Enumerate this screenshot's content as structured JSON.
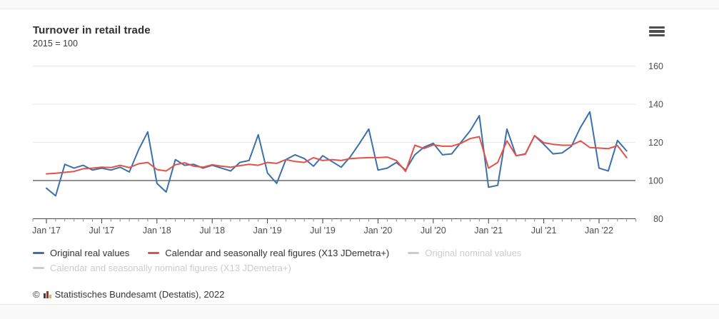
{
  "header": {
    "title": "Turnover in retail trade",
    "subtitle": "2015 = 100"
  },
  "menu": {
    "icon": "hamburger-menu",
    "bars": 3
  },
  "chart_data": {
    "type": "line",
    "title": "Turnover in retail trade",
    "subtitle": "2015 = 100",
    "xlabel": "",
    "ylabel": "",
    "ylim": [
      80,
      163
    ],
    "y_ticks": [
      80,
      100,
      120,
      140,
      160
    ],
    "baseline_value": 100,
    "grid": true,
    "legend_position": "bottom",
    "x_tick_labels": [
      "Jan '17",
      "Jul '17",
      "Jan '18",
      "Jul '18",
      "Jan '19",
      "Jul '19",
      "Jan '20",
      "Jul '20",
      "Jan '21",
      "Jul '21",
      "Jan '22"
    ],
    "x_months": [
      "Jan '17",
      "Feb '17",
      "Mar '17",
      "Apr '17",
      "May '17",
      "Jun '17",
      "Jul '17",
      "Aug '17",
      "Sep '17",
      "Oct '17",
      "Nov '17",
      "Dec '17",
      "Jan '18",
      "Feb '18",
      "Mar '18",
      "Apr '18",
      "May '18",
      "Jun '18",
      "Jul '18",
      "Aug '18",
      "Sep '18",
      "Oct '18",
      "Nov '18",
      "Dec '18",
      "Jan '19",
      "Feb '19",
      "Mar '19",
      "Apr '19",
      "May '19",
      "Jun '19",
      "Jul '19",
      "Aug '19",
      "Sep '19",
      "Oct '19",
      "Nov '19",
      "Dec '19",
      "Jan '20",
      "Feb '20",
      "Mar '20",
      "Apr '20",
      "May '20",
      "Jun '20",
      "Jul '20",
      "Aug '20",
      "Sep '20",
      "Oct '20",
      "Nov '20",
      "Dec '20",
      "Jan '21",
      "Feb '21",
      "Mar '21",
      "Apr '21",
      "May '21",
      "Jun '21",
      "Jul '21",
      "Aug '21",
      "Sep '21",
      "Oct '21",
      "Nov '21",
      "Dec '21",
      "Jan '22",
      "Feb '22",
      "Mar '22",
      "Apr '22"
    ],
    "series": [
      {
        "name": "Original real values",
        "color": "#3c70ab",
        "active": true,
        "values": [
          96,
          92,
          108.5,
          106.5,
          108,
          105.5,
          106.5,
          105.5,
          107,
          104.5,
          116,
          125.5,
          98.5,
          94,
          111,
          108,
          108.5,
          106.5,
          108,
          106.5,
          105,
          109.5,
          110.5,
          124,
          104,
          98.5,
          111,
          113.5,
          111.5,
          107.5,
          113,
          110,
          107,
          112.5,
          119.5,
          127,
          105.5,
          106.5,
          109.5,
          105.5,
          113.5,
          117.5,
          119.5,
          113.5,
          114,
          120,
          126,
          134,
          96.5,
          97.5,
          127,
          113,
          114,
          123.5,
          119,
          114,
          114.5,
          118,
          128,
          136,
          106.5,
          105,
          121,
          115.5
        ]
      },
      {
        "name": "Calendar and seasonally real figures (X13 JDemetra+)",
        "color": "#e2514a",
        "active": true,
        "values": [
          103.5,
          103.8,
          104.3,
          104.8,
          106.2,
          106.5,
          107,
          106.8,
          108,
          106.8,
          108.8,
          109.5,
          105.8,
          105,
          108.3,
          109.3,
          107.5,
          107,
          108.3,
          107.5,
          107,
          107.8,
          108.5,
          108,
          109.5,
          109,
          111,
          110,
          109.5,
          112,
          110.5,
          111,
          110.5,
          111.5,
          111.8,
          112,
          112,
          112.3,
          110.5,
          104.8,
          118.5,
          116.8,
          118.7,
          118,
          118,
          119.5,
          122,
          123,
          106.5,
          109.5,
          120.8,
          113,
          113.8,
          123.5,
          119.8,
          119,
          118.5,
          118.5,
          120.8,
          117.3,
          117,
          116.7,
          118.3,
          112
        ]
      },
      {
        "name": "Original nominal values",
        "color": "#cccccc",
        "active": false,
        "values": []
      },
      {
        "name": "Calendar and seasonally nominal figures (X13 JDemetra+)",
        "color": "#cccccc",
        "active": false,
        "values": []
      }
    ]
  },
  "footer": {
    "copyright": "©",
    "source": "Statistisches Bundesamt (Destatis), 2022"
  }
}
